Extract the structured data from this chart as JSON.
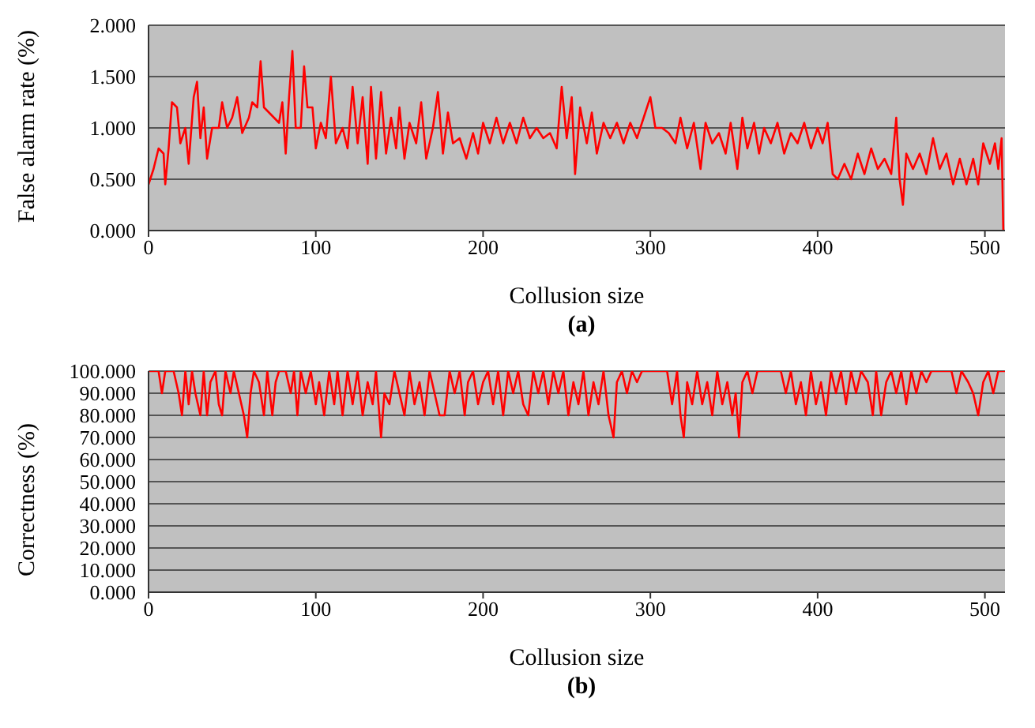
{
  "chart_data": [
    {
      "type": "line",
      "xlabel": "Collusion size",
      "ylabel": "False alarm rate (%)",
      "annotations": [
        "(a)"
      ],
      "x": [
        0,
        3,
        6,
        9,
        10,
        12,
        14,
        17,
        19,
        22,
        24,
        27,
        29,
        31,
        33,
        35,
        38,
        42,
        44,
        47,
        50,
        53,
        56,
        60,
        62,
        65,
        67,
        69,
        72,
        75,
        78,
        80,
        82,
        84,
        86,
        88,
        91,
        93,
        95,
        98,
        100,
        103,
        106,
        109,
        112,
        116,
        119,
        122,
        125,
        128,
        131,
        133,
        136,
        139,
        142,
        145,
        148,
        150,
        153,
        156,
        160,
        163,
        166,
        170,
        173,
        176,
        179,
        182,
        186,
        190,
        194,
        197,
        200,
        204,
        208,
        212,
        216,
        220,
        224,
        228,
        232,
        236,
        240,
        244,
        247,
        250,
        253,
        255,
        258,
        262,
        265,
        268,
        272,
        276,
        280,
        284,
        288,
        292,
        296,
        300,
        303,
        307,
        311,
        315,
        318,
        322,
        326,
        330,
        333,
        337,
        341,
        345,
        348,
        352,
        355,
        358,
        362,
        365,
        368,
        372,
        376,
        380,
        384,
        388,
        392,
        396,
        400,
        403,
        406,
        409,
        412,
        416,
        420,
        424,
        428,
        432,
        436,
        440,
        444,
        447,
        449,
        451,
        453,
        457,
        461,
        465,
        469,
        473,
        477,
        481,
        485,
        489,
        493,
        496,
        499,
        503,
        506,
        508,
        510,
        511
      ],
      "series": [
        {
          "color": "#ff0000",
          "values": [
            0.45,
            0.6,
            0.8,
            0.75,
            0.45,
            0.8,
            1.25,
            1.2,
            0.85,
            1.0,
            0.65,
            1.3,
            1.45,
            0.9,
            1.2,
            0.7,
            1.0,
            1.0,
            1.25,
            1.0,
            1.1,
            1.3,
            0.95,
            1.1,
            1.25,
            1.2,
            1.65,
            1.2,
            1.15,
            1.1,
            1.05,
            1.25,
            0.75,
            1.3,
            1.75,
            1.0,
            1.0,
            1.6,
            1.2,
            1.2,
            0.8,
            1.05,
            0.9,
            1.5,
            0.85,
            1.0,
            0.8,
            1.4,
            0.85,
            1.3,
            0.65,
            1.4,
            0.7,
            1.35,
            0.75,
            1.1,
            0.8,
            1.2,
            0.7,
            1.05,
            0.85,
            1.25,
            0.7,
            1.0,
            1.35,
            0.75,
            1.15,
            0.85,
            0.9,
            0.7,
            0.95,
            0.75,
            1.05,
            0.85,
            1.1,
            0.85,
            1.05,
            0.85,
            1.1,
            0.9,
            1.0,
            0.9,
            0.95,
            0.8,
            1.4,
            0.9,
            1.3,
            0.55,
            1.2,
            0.85,
            1.15,
            0.75,
            1.05,
            0.9,
            1.05,
            0.85,
            1.05,
            0.9,
            1.1,
            1.3,
            1.0,
            1.0,
            0.95,
            0.85,
            1.1,
            0.8,
            1.05,
            0.6,
            1.05,
            0.85,
            0.95,
            0.75,
            1.05,
            0.6,
            1.1,
            0.8,
            1.05,
            0.75,
            1.0,
            0.85,
            1.05,
            0.75,
            0.95,
            0.85,
            1.05,
            0.8,
            1.0,
            0.85,
            1.05,
            0.55,
            0.5,
            0.65,
            0.5,
            0.75,
            0.55,
            0.8,
            0.6,
            0.7,
            0.55,
            1.1,
            0.5,
            0.25,
            0.75,
            0.6,
            0.75,
            0.55,
            0.9,
            0.6,
            0.75,
            0.45,
            0.7,
            0.45,
            0.7,
            0.45,
            0.85,
            0.65,
            0.85,
            0.6,
            0.9,
            0.0
          ]
        }
      ],
      "xlim": [
        0,
        512
      ],
      "xticks": [
        0,
        100,
        200,
        300,
        400,
        500
      ],
      "ylim": [
        0,
        2
      ],
      "yticks": [
        {
          "value": 0,
          "label": "0.000"
        },
        {
          "value": 0.5,
          "label": "0.500"
        },
        {
          "value": 1,
          "label": "1.000"
        },
        {
          "value": 1.5,
          "label": "1.500"
        },
        {
          "value": 2,
          "label": "2.000"
        }
      ],
      "grid": "y",
      "legend": false,
      "marker": "none",
      "line_style": "solid"
    },
    {
      "type": "line",
      "xlabel": "Collusion size",
      "ylabel": "Correctness (%)",
      "annotations": [
        "(b)"
      ],
      "x": [
        0,
        6,
        8,
        10,
        15,
        18,
        20,
        22,
        24,
        26,
        28,
        31,
        33,
        35,
        37,
        40,
        42,
        44,
        46,
        49,
        51,
        54,
        57,
        59,
        61,
        63,
        66,
        69,
        71,
        74,
        76,
        78,
        82,
        85,
        87,
        89,
        91,
        94,
        97,
        100,
        102,
        105,
        108,
        111,
        113,
        116,
        119,
        122,
        125,
        128,
        131,
        134,
        136,
        139,
        141,
        144,
        147,
        150,
        153,
        156,
        159,
        162,
        165,
        168,
        171,
        174,
        177,
        180,
        183,
        186,
        189,
        191,
        194,
        197,
        200,
        203,
        206,
        209,
        212,
        215,
        218,
        221,
        224,
        227,
        230,
        233,
        236,
        239,
        242,
        245,
        248,
        251,
        254,
        257,
        260,
        263,
        266,
        269,
        272,
        275,
        278,
        280,
        283,
        286,
        289,
        292,
        295,
        310,
        313,
        316,
        318,
        320,
        322,
        325,
        328,
        331,
        334,
        337,
        340,
        343,
        346,
        349,
        351,
        353,
        355,
        358,
        361,
        364,
        378,
        381,
        384,
        387,
        390,
        393,
        396,
        399,
        402,
        405,
        408,
        411,
        414,
        417,
        420,
        423,
        426,
        430,
        433,
        435,
        438,
        441,
        444,
        447,
        450,
        453,
        456,
        459,
        462,
        465,
        468,
        480,
        483,
        486,
        490,
        493,
        496,
        499,
        502,
        505,
        508,
        512
      ],
      "series": [
        {
          "color": "#ff0000",
          "values": [
            100,
            100,
            90,
            100,
            100,
            90,
            80,
            100,
            85,
            100,
            90,
            80,
            100,
            80,
            95,
            100,
            85,
            80,
            100,
            90,
            100,
            90,
            80,
            70,
            90,
            100,
            95,
            80,
            100,
            80,
            95,
            100,
            100,
            90,
            100,
            80,
            100,
            90,
            100,
            85,
            95,
            80,
            100,
            85,
            100,
            80,
            100,
            85,
            100,
            80,
            95,
            85,
            100,
            70,
            90,
            85,
            100,
            90,
            80,
            100,
            85,
            95,
            80,
            100,
            90,
            80,
            80,
            100,
            90,
            100,
            80,
            95,
            100,
            85,
            95,
            100,
            85,
            100,
            80,
            100,
            90,
            100,
            85,
            80,
            100,
            90,
            100,
            85,
            100,
            90,
            100,
            80,
            95,
            85,
            100,
            80,
            95,
            85,
            100,
            80,
            70,
            95,
            100,
            90,
            100,
            95,
            100,
            100,
            85,
            100,
            80,
            70,
            95,
            85,
            100,
            85,
            95,
            80,
            100,
            85,
            95,
            80,
            90,
            70,
            95,
            100,
            90,
            100,
            100,
            90,
            100,
            85,
            95,
            80,
            100,
            85,
            95,
            80,
            100,
            90,
            100,
            85,
            100,
            90,
            100,
            95,
            80,
            100,
            80,
            95,
            100,
            90,
            100,
            85,
            100,
            90,
            100,
            95,
            100,
            100,
            90,
            100,
            95,
            90,
            80,
            95,
            100,
            90,
            100,
            100
          ]
        }
      ],
      "xlim": [
        0,
        512
      ],
      "xticks": [
        0,
        100,
        200,
        300,
        400,
        500
      ],
      "ylim": [
        0,
        100
      ],
      "yticks": [
        {
          "value": 0,
          "label": "0.000"
        },
        {
          "value": 10,
          "label": "10.000"
        },
        {
          "value": 20,
          "label": "20.000"
        },
        {
          "value": 30,
          "label": "30.000"
        },
        {
          "value": 40,
          "label": "40.000"
        },
        {
          "value": 50,
          "label": "50.000"
        },
        {
          "value": 60,
          "label": "60.000"
        },
        {
          "value": 70,
          "label": "70.000"
        },
        {
          "value": 80,
          "label": "80.000"
        },
        {
          "value": 90,
          "label": "90.000"
        },
        {
          "value": 100,
          "label": "100.000"
        }
      ],
      "grid": "y",
      "legend": false,
      "marker": "none",
      "line_style": "solid"
    }
  ]
}
